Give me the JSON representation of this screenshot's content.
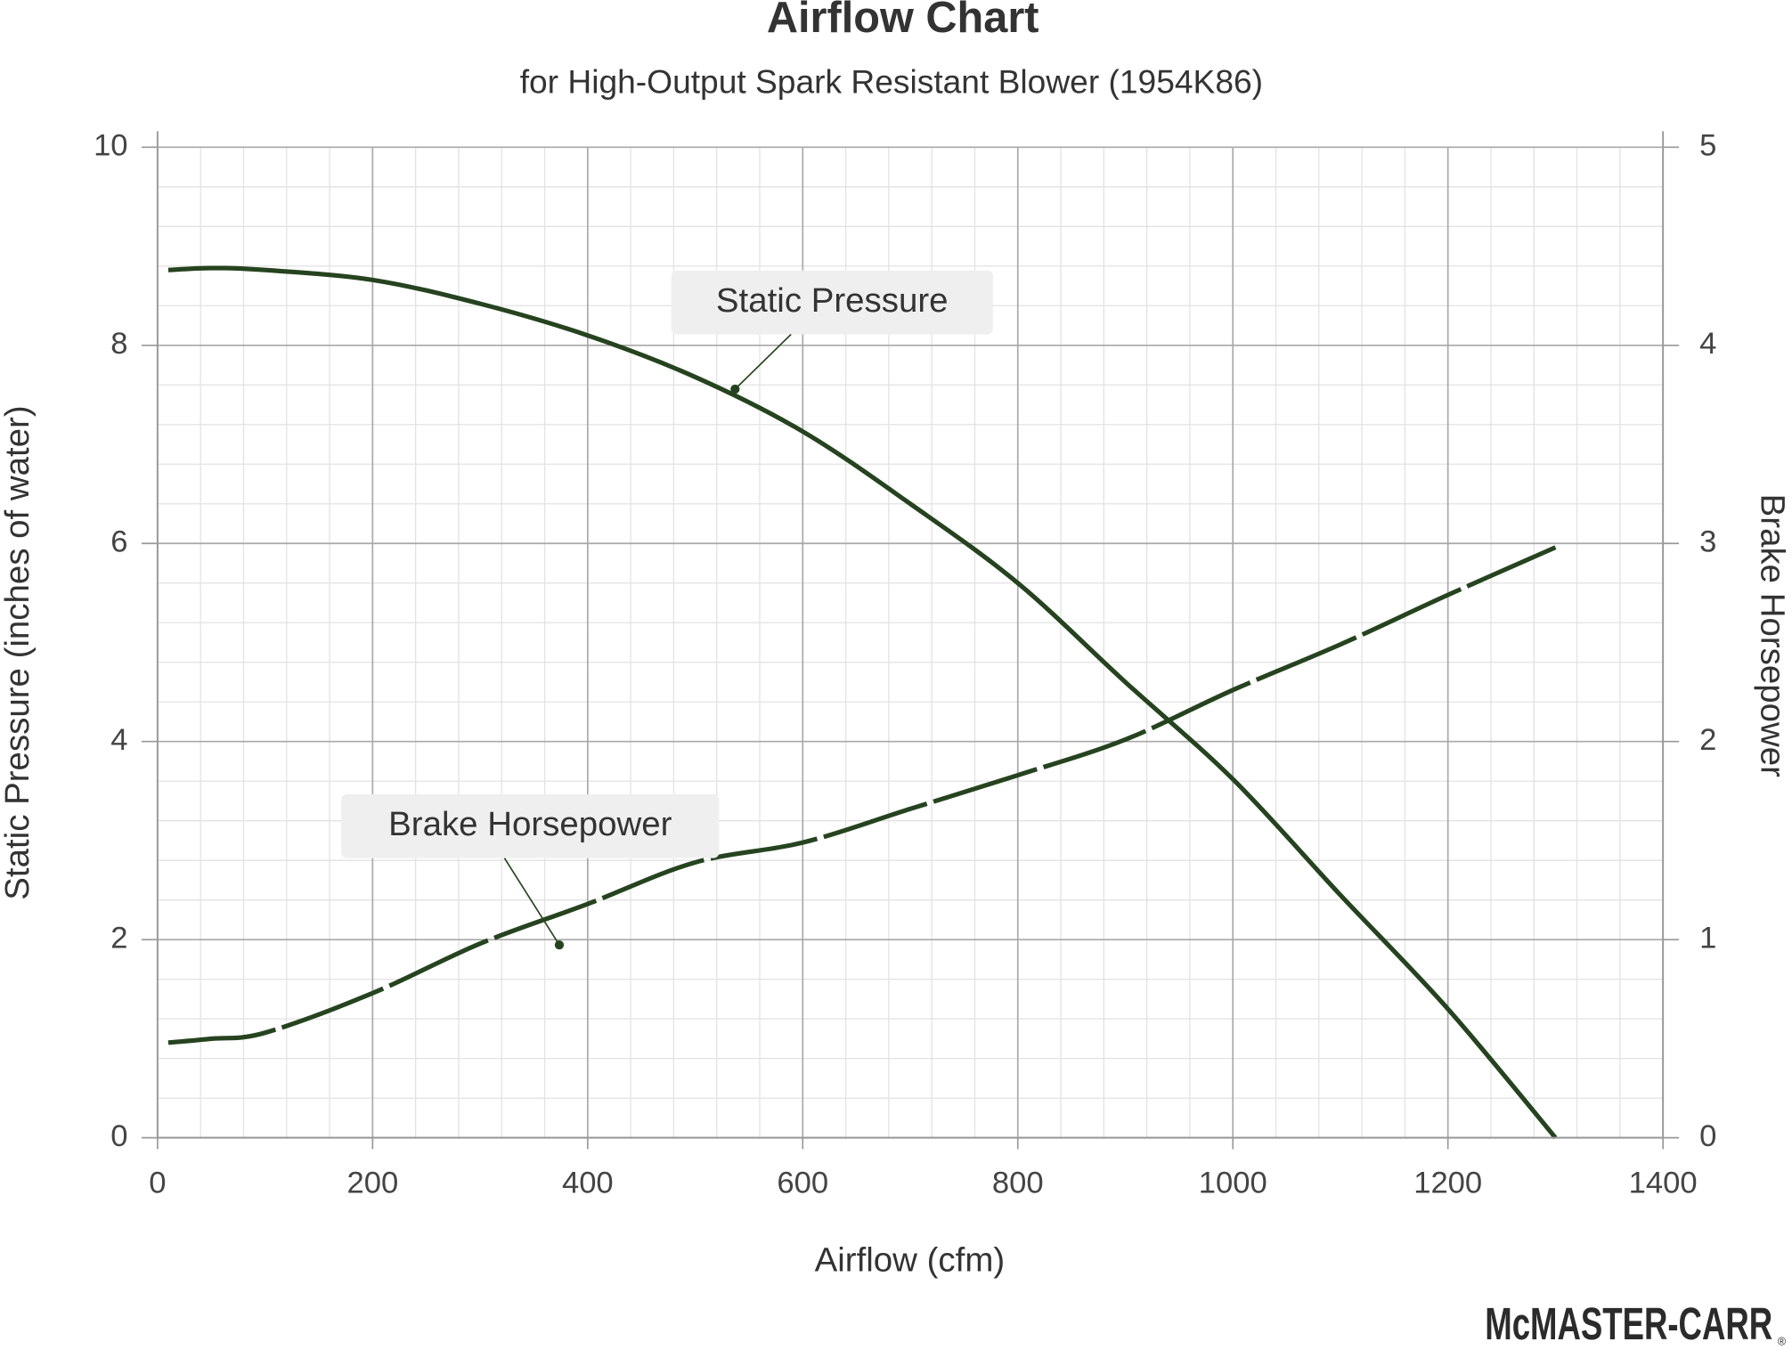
{
  "chart_data": {
    "type": "line",
    "title": "Airflow Chart",
    "subtitle": "for High-Output Spark Resistant Blower (1954K86)",
    "x_label": "Airflow (cfm)",
    "y_label": "Static Pressure (inches of water)",
    "y2_label": "Brake Horsepower",
    "brand": "McMASTER-CARR",
    "x": [
      10,
      50,
      100,
      200,
      300,
      400,
      500,
      600,
      700,
      800,
      900,
      1000,
      1100,
      1200,
      1300
    ],
    "series": [
      {
        "name": "Static Pressure",
        "color": "#26431f",
        "dashed": false,
        "values": [
          8.76,
          8.78,
          8.76,
          8.66,
          8.42,
          8.1,
          7.68,
          7.13,
          6.4,
          5.6,
          4.6,
          3.62,
          2.45,
          1.3,
          0
        ]
      },
      {
        "name": "Brake Horsepower",
        "color": "#26431f",
        "dashed": true,
        "axis": "y2",
        "values": [
          0.48,
          0.5,
          0.53,
          0.73,
          0.98,
          1.18,
          1.39,
          1.49,
          1.66,
          1.83,
          2.01,
          2.26,
          2.49,
          2.74,
          2.98
        ]
      }
    ],
    "xlim": [
      0,
      1400
    ],
    "xticks": [
      0,
      200,
      400,
      600,
      800,
      1000,
      1200,
      1400
    ],
    "ylim": [
      0,
      10
    ],
    "yticks": [
      0,
      2,
      4,
      6,
      8,
      10
    ],
    "y2lim": [
      0,
      5
    ],
    "y2ticks": [
      0,
      1,
      2,
      3,
      4,
      5
    ],
    "grid": true,
    "minor_grid_divisions": [
      5,
      5
    ]
  }
}
